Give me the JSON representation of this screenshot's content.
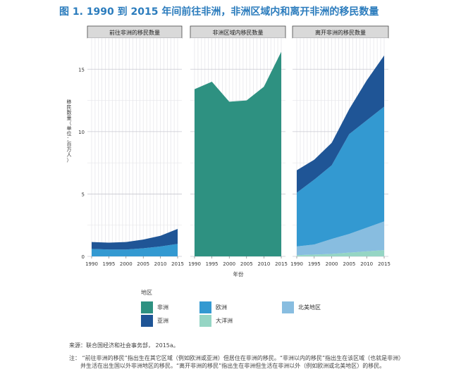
{
  "title": "图 1. 1990 到 2015 年间前往非洲，非洲区域内和离开非洲的移民数量",
  "chart_data": {
    "type": "area",
    "x": [
      1990,
      1995,
      2000,
      2005,
      2010,
      2015
    ],
    "xlabel": "年份",
    "ylabel_chars": [
      "移",
      "民",
      "数",
      "量",
      "（",
      "单",
      "位",
      "：",
      "百",
      "万",
      "人",
      "）"
    ],
    "ylim": [
      0,
      17.5
    ],
    "yticks": [
      0,
      5,
      10,
      15
    ],
    "grid": true,
    "panels": [
      {
        "title": "前往非洲的移民数量",
        "series": [
          {
            "name": "欧洲",
            "values": [
              0.6,
              0.55,
              0.55,
              0.65,
              0.8,
              1.0
            ]
          },
          {
            "name": "亚洲",
            "values": [
              0.55,
              0.55,
              0.6,
              0.7,
              0.85,
              1.2
            ]
          }
        ]
      },
      {
        "title": "非洲区域内移民数量",
        "series": [
          {
            "name": "非洲",
            "values": [
              13.4,
              14.0,
              12.4,
              12.5,
              13.6,
              16.4
            ]
          }
        ]
      },
      {
        "title": "离开非洲的移民数量",
        "series": [
          {
            "name": "大洋洲",
            "values": [
              0.1,
              0.15,
              0.2,
              0.3,
              0.4,
              0.5
            ]
          },
          {
            "name": "北美地区",
            "values": [
              0.7,
              0.8,
              1.2,
              1.5,
              1.9,
              2.3
            ]
          },
          {
            "name": "欧洲",
            "values": [
              4.3,
              5.2,
              5.9,
              8.0,
              8.6,
              9.2
            ]
          },
          {
            "name": "亚洲",
            "values": [
              1.8,
              1.6,
              1.8,
              2.0,
              3.2,
              4.1
            ]
          }
        ]
      }
    ],
    "legend": {
      "title": "地区",
      "items": [
        {
          "name": "非洲",
          "color": "#2e9181"
        },
        {
          "name": "欧洲",
          "color": "#3399d1"
        },
        {
          "name": "北美地区",
          "color": "#88bde0"
        },
        {
          "name": "亚洲",
          "color": "#1f5596"
        },
        {
          "name": "大洋洲",
          "color": "#95d5c4"
        }
      ]
    }
  },
  "source": "来源：联合国经济和社会事务部， 2015a。",
  "note_line1": "注：  “前往非洲的移民”指出生在其它区域（例如欧洲或亚洲）但居住在非洲的移民。“非洲以内的移民”指出生在该区域（也就是非洲）",
  "note_line2": "并生活在出生国以外非洲地区的移民。“离开非洲的移民”指出生在非洲但生活在非洲以外（例如欧洲或北美地区）的移民。"
}
